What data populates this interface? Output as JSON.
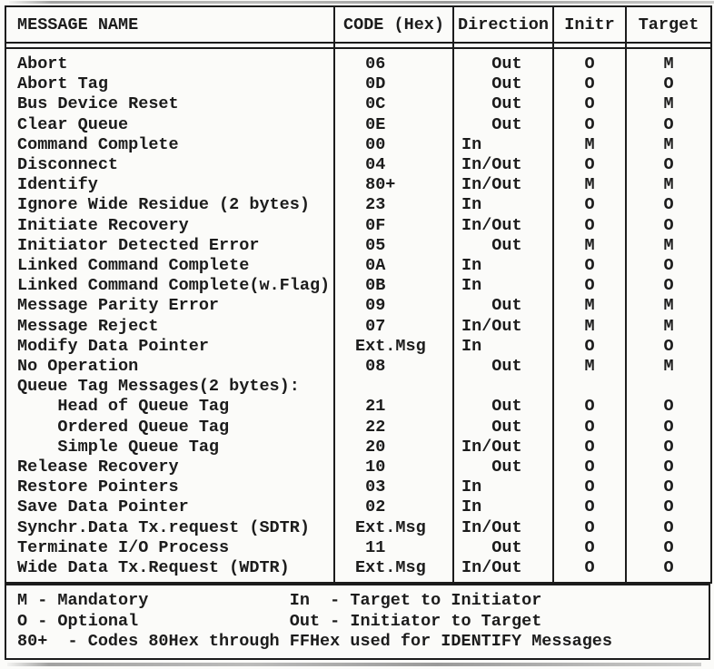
{
  "colors": {
    "ink": "#1c1c1c",
    "paper": "#fbfbf9"
  },
  "table": {
    "columns": [
      {
        "label": "MESSAGE NAME"
      },
      {
        "label": "CODE (Hex)"
      },
      {
        "label": "Direction"
      },
      {
        "label": "Initr"
      },
      {
        "label": "Target"
      }
    ],
    "rows": [
      {
        "name": "Abort",
        "code": " 06",
        "direction": "   Out",
        "initr": "O",
        "target": "M"
      },
      {
        "name": "Abort Tag",
        "code": " 0D",
        "direction": "   Out",
        "initr": "O",
        "target": "O"
      },
      {
        "name": "Bus Device Reset",
        "code": " 0C",
        "direction": "   Out",
        "initr": "O",
        "target": "M"
      },
      {
        "name": "Clear Queue",
        "code": " 0E",
        "direction": "   Out",
        "initr": "O",
        "target": "O"
      },
      {
        "name": "Command Complete",
        "code": " 00",
        "direction": "In",
        "initr": "M",
        "target": "M"
      },
      {
        "name": "Disconnect",
        "code": " 04",
        "direction": "In/Out",
        "initr": "O",
        "target": "O"
      },
      {
        "name": "Identify",
        "code": " 80+",
        "direction": "In/Out",
        "initr": "M",
        "target": "M"
      },
      {
        "name": "Ignore Wide Residue (2 bytes)",
        "code": " 23",
        "direction": "In",
        "initr": "O",
        "target": "O"
      },
      {
        "name": "Initiate Recovery",
        "code": " 0F",
        "direction": "In/Out",
        "initr": "O",
        "target": "O"
      },
      {
        "name": "Initiator Detected Error",
        "code": " 05",
        "direction": "   Out",
        "initr": "M",
        "target": "M"
      },
      {
        "name": "Linked Command Complete",
        "code": " 0A",
        "direction": "In",
        "initr": "O",
        "target": "O"
      },
      {
        "name": "Linked Command Complete(w.Flag)",
        "code": " 0B",
        "direction": "In",
        "initr": "O",
        "target": "O"
      },
      {
        "name": "Message Parity Error",
        "code": " 09",
        "direction": "   Out",
        "initr": "M",
        "target": "M"
      },
      {
        "name": "Message Reject",
        "code": " 07",
        "direction": "In/Out",
        "initr": "M",
        "target": "M"
      },
      {
        "name": "Modify Data Pointer",
        "code": "Ext.Msg",
        "direction": "In",
        "initr": "O",
        "target": "O"
      },
      {
        "name": "No Operation",
        "code": " 08",
        "direction": "   Out",
        "initr": "M",
        "target": "M"
      },
      {
        "name": "Queue Tag Messages(2 bytes):",
        "code": "",
        "direction": "",
        "initr": "",
        "target": ""
      },
      {
        "name": "    Head of Queue Tag",
        "code": " 21",
        "direction": "   Out",
        "initr": "O",
        "target": "O"
      },
      {
        "name": "    Ordered Queue Tag",
        "code": " 22",
        "direction": "   Out",
        "initr": "O",
        "target": "O"
      },
      {
        "name": "    Simple Queue Tag",
        "code": " 20",
        "direction": "In/Out",
        "initr": "O",
        "target": "O"
      },
      {
        "name": "Release Recovery",
        "code": " 10",
        "direction": "   Out",
        "initr": "O",
        "target": "O"
      },
      {
        "name": "Restore Pointers",
        "code": " 03",
        "direction": "In",
        "initr": "O",
        "target": "O"
      },
      {
        "name": "Save Data Pointer",
        "code": " 02",
        "direction": "In",
        "initr": "O",
        "target": "O"
      },
      {
        "name": "Synchr.Data Tx.request (SDTR)",
        "code": "Ext.Msg",
        "direction": "In/Out",
        "initr": "O",
        "target": "O"
      },
      {
        "name": "Terminate I/O Process",
        "code": " 11",
        "direction": "   Out",
        "initr": "O",
        "target": "O"
      },
      {
        "name": "Wide Data Tx.Request (WDTR)",
        "code": "Ext.Msg",
        "direction": "In/Out",
        "initr": "O",
        "target": "O"
      }
    ]
  },
  "legend": {
    "lines": [
      "M - Mandatory              In  - Target to Initiator",
      "O - Optional               Out - Initiator to Target",
      "80+  - Codes 80Hex through FFHex used for IDENTIFY Messages"
    ]
  }
}
